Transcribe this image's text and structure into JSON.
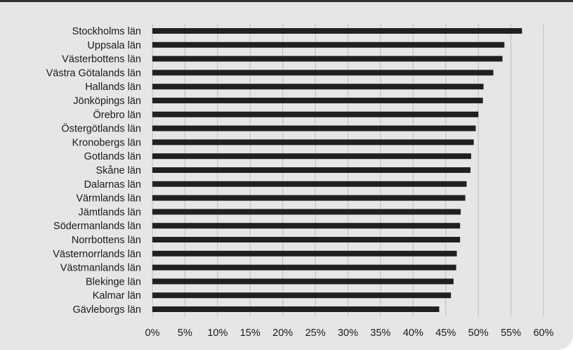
{
  "colors": {
    "background": "#e6e6e6",
    "bar": "#231f20",
    "gridline": "#bdbdbd",
    "frame_top": "#333333"
  },
  "chart_data": {
    "type": "bar",
    "orientation": "horizontal",
    "title": "",
    "xlabel": "",
    "ylabel": "",
    "xlim": [
      0,
      0.6
    ],
    "x_ticks": [
      0,
      0.05,
      0.1,
      0.15,
      0.2,
      0.25,
      0.3,
      0.35,
      0.4,
      0.45,
      0.5,
      0.55,
      0.6
    ],
    "x_tick_labels": [
      "0%",
      "5%",
      "10%",
      "15%",
      "20%",
      "25%",
      "30%",
      "35%",
      "40%",
      "45%",
      "50%",
      "55%",
      "60%"
    ],
    "grid": "vertical",
    "legend": "none",
    "categories": [
      "Stockholms län",
      "Uppsala län",
      "Västerbottens län",
      "Västra Götalands län",
      "Hallands län",
      "Jönköpings län",
      "Örebro län",
      "Östergötlands län",
      "Kronobergs län",
      "Gotlands län",
      "Skåne län",
      "Dalarnas län",
      "Värmlands län",
      "Jämtlands län",
      "Södermanlands län",
      "Norrbottens län",
      "Västernorrlands län",
      "Västmanlands län",
      "Blekinge län",
      "Kalmar län",
      "Gävleborgs län"
    ],
    "values": [
      0.567,
      0.54,
      0.537,
      0.523,
      0.508,
      0.507,
      0.5,
      0.496,
      0.493,
      0.489,
      0.488,
      0.482,
      0.48,
      0.473,
      0.472,
      0.472,
      0.467,
      0.466,
      0.462,
      0.458,
      0.44
    ]
  }
}
